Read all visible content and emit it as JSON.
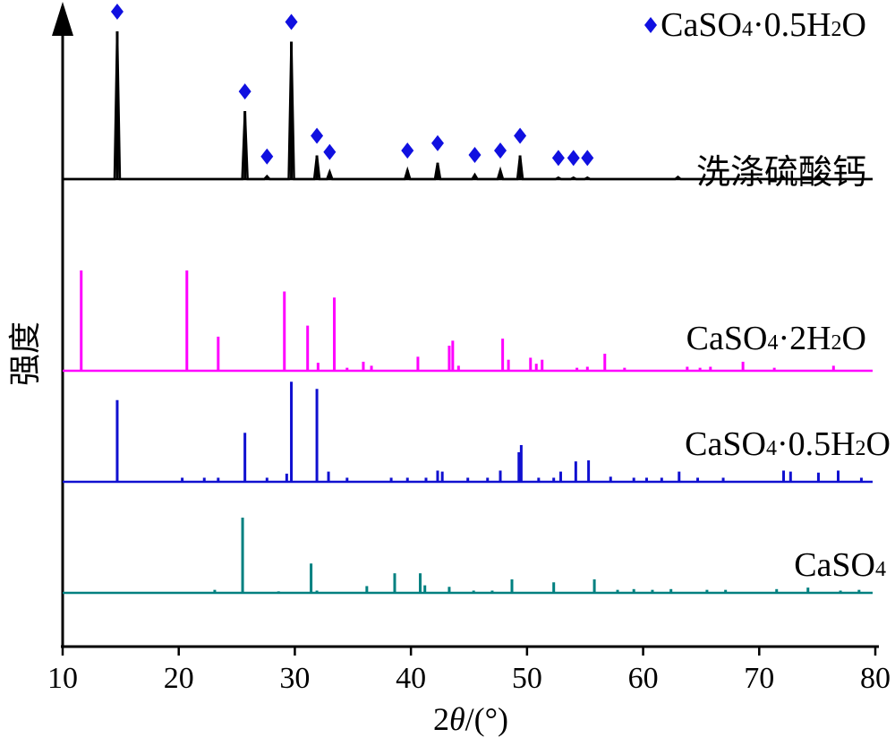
{
  "chart_data": {
    "type": "line",
    "title": "",
    "xlabel": "2θ/(°)",
    "ylabel": "强度",
    "xlim": [
      10,
      80
    ],
    "x_ticks": [
      10,
      20,
      30,
      40,
      50,
      60,
      70,
      80
    ],
    "grid": false,
    "legend": {
      "position": "top-right",
      "marker": "diamond",
      "color": "#1010e0",
      "label_parts": [
        "CaSO",
        "4",
        "·0.5H",
        "2",
        "O"
      ]
    },
    "series": [
      {
        "name": "洗涤硫酸钙",
        "label_parts": [
          "洗涤硫酸钙"
        ],
        "color": "#000000",
        "baseline": 1.0,
        "peaks": [
          {
            "x": 14.7,
            "h": 10.0,
            "marked": true
          },
          {
            "x": 25.7,
            "h": 4.6,
            "marked": true
          },
          {
            "x": 27.6,
            "h": 0.2,
            "marked": true
          },
          {
            "x": 29.7,
            "h": 9.3,
            "marked": true
          },
          {
            "x": 31.9,
            "h": 1.6,
            "marked": true
          },
          {
            "x": 33.0,
            "h": 0.5,
            "marked": true
          },
          {
            "x": 39.7,
            "h": 0.6,
            "marked": true
          },
          {
            "x": 42.3,
            "h": 1.1,
            "marked": true
          },
          {
            "x": 45.5,
            "h": 0.3,
            "marked": true
          },
          {
            "x": 47.7,
            "h": 0.6,
            "marked": true
          },
          {
            "x": 49.4,
            "h": 1.6,
            "marked": true
          },
          {
            "x": 52.7,
            "h": 0.1,
            "marked": true
          },
          {
            "x": 54.0,
            "h": 0.1,
            "marked": true
          },
          {
            "x": 55.2,
            "h": 0.1,
            "marked": true
          },
          {
            "x": 63.0,
            "h": 0.15,
            "marked": false
          },
          {
            "x": 72.0,
            "h": 0.2,
            "marked": false
          },
          {
            "x": 75.0,
            "h": 0.2,
            "marked": false
          }
        ]
      },
      {
        "name": "CaSO4·2H2O",
        "label_parts": [
          "CaSO",
          "4",
          "·2H",
          "2",
          "O"
        ],
        "color": "#ff00ff",
        "baseline": 1.0,
        "peaks": [
          {
            "x": 11.6,
            "h": 10.0
          },
          {
            "x": 20.7,
            "h": 10.0
          },
          {
            "x": 23.4,
            "h": 3.4
          },
          {
            "x": 29.1,
            "h": 7.9
          },
          {
            "x": 31.1,
            "h": 4.5
          },
          {
            "x": 32.0,
            "h": 0.8
          },
          {
            "x": 33.4,
            "h": 7.3
          },
          {
            "x": 34.5,
            "h": 0.3
          },
          {
            "x": 35.9,
            "h": 0.9
          },
          {
            "x": 36.6,
            "h": 0.5
          },
          {
            "x": 40.6,
            "h": 1.4
          },
          {
            "x": 43.3,
            "h": 2.5
          },
          {
            "x": 43.6,
            "h": 3.0
          },
          {
            "x": 44.1,
            "h": 0.5
          },
          {
            "x": 47.9,
            "h": 3.2
          },
          {
            "x": 48.4,
            "h": 1.1
          },
          {
            "x": 50.3,
            "h": 1.3
          },
          {
            "x": 50.8,
            "h": 0.7
          },
          {
            "x": 51.3,
            "h": 1.1
          },
          {
            "x": 54.3,
            "h": 0.3
          },
          {
            "x": 55.2,
            "h": 0.4
          },
          {
            "x": 56.7,
            "h": 1.7
          },
          {
            "x": 58.4,
            "h": 0.3
          },
          {
            "x": 63.8,
            "h": 0.4
          },
          {
            "x": 64.9,
            "h": 0.3
          },
          {
            "x": 65.8,
            "h": 0.4
          },
          {
            "x": 68.6,
            "h": 0.9
          },
          {
            "x": 71.3,
            "h": 0.3
          },
          {
            "x": 76.4,
            "h": 0.5
          }
        ]
      },
      {
        "name": "CaSO4·0.5H2O",
        "label_parts": [
          "CaSO",
          "4",
          "·0.5H",
          "2",
          "O"
        ],
        "color": "#1010d0",
        "baseline": 1.0,
        "peaks": [
          {
            "x": 14.7,
            "h": 8.0
          },
          {
            "x": 20.3,
            "h": 0.4
          },
          {
            "x": 22.2,
            "h": 0.4
          },
          {
            "x": 23.4,
            "h": 0.4
          },
          {
            "x": 25.7,
            "h": 4.8
          },
          {
            "x": 27.6,
            "h": 0.4
          },
          {
            "x": 29.3,
            "h": 0.8
          },
          {
            "x": 29.7,
            "h": 9.8
          },
          {
            "x": 31.9,
            "h": 9.1
          },
          {
            "x": 32.9,
            "h": 1.0
          },
          {
            "x": 34.5,
            "h": 0.4
          },
          {
            "x": 38.3,
            "h": 0.4
          },
          {
            "x": 39.7,
            "h": 0.4
          },
          {
            "x": 41.3,
            "h": 0.4
          },
          {
            "x": 42.3,
            "h": 1.1
          },
          {
            "x": 42.7,
            "h": 1.0
          },
          {
            "x": 44.9,
            "h": 0.4
          },
          {
            "x": 46.6,
            "h": 0.4
          },
          {
            "x": 47.7,
            "h": 1.1
          },
          {
            "x": 49.3,
            "h": 2.9
          },
          {
            "x": 49.5,
            "h": 3.6
          },
          {
            "x": 51.0,
            "h": 0.4
          },
          {
            "x": 52.3,
            "h": 0.4
          },
          {
            "x": 52.9,
            "h": 1.0
          },
          {
            "x": 54.2,
            "h": 2.0
          },
          {
            "x": 55.3,
            "h": 2.1
          },
          {
            "x": 57.2,
            "h": 0.5
          },
          {
            "x": 59.2,
            "h": 0.4
          },
          {
            "x": 60.3,
            "h": 0.4
          },
          {
            "x": 61.6,
            "h": 0.4
          },
          {
            "x": 63.1,
            "h": 1.0
          },
          {
            "x": 64.7,
            "h": 0.4
          },
          {
            "x": 66.9,
            "h": 0.4
          },
          {
            "x": 72.1,
            "h": 1.1
          },
          {
            "x": 72.7,
            "h": 1.0
          },
          {
            "x": 75.1,
            "h": 0.9
          },
          {
            "x": 76.8,
            "h": 1.1
          },
          {
            "x": 78.8,
            "h": 0.4
          }
        ]
      },
      {
        "name": "CaSO4",
        "label_parts": [
          "CaSO",
          "4"
        ],
        "color": "#008080",
        "baseline": 1.0,
        "peaks": [
          {
            "x": 23.1,
            "h": 0.4
          },
          {
            "x": 25.5,
            "h": 10.0
          },
          {
            "x": 28.6,
            "h": 0.2
          },
          {
            "x": 31.4,
            "h": 3.9
          },
          {
            "x": 31.9,
            "h": 0.3
          },
          {
            "x": 36.2,
            "h": 0.9
          },
          {
            "x": 38.6,
            "h": 2.6
          },
          {
            "x": 40.8,
            "h": 2.6
          },
          {
            "x": 41.2,
            "h": 1.0
          },
          {
            "x": 43.3,
            "h": 0.8
          },
          {
            "x": 45.4,
            "h": 0.3
          },
          {
            "x": 47.0,
            "h": 0.3
          },
          {
            "x": 48.7,
            "h": 1.8
          },
          {
            "x": 52.3,
            "h": 1.4
          },
          {
            "x": 55.8,
            "h": 1.8
          },
          {
            "x": 57.8,
            "h": 0.4
          },
          {
            "x": 59.2,
            "h": 0.5
          },
          {
            "x": 60.8,
            "h": 0.4
          },
          {
            "x": 62.4,
            "h": 0.5
          },
          {
            "x": 65.5,
            "h": 0.4
          },
          {
            "x": 67.1,
            "h": 0.4
          },
          {
            "x": 71.5,
            "h": 0.5
          },
          {
            "x": 74.2,
            "h": 0.7
          },
          {
            "x": 77.0,
            "h": 0.3
          },
          {
            "x": 78.6,
            "h": 0.4
          }
        ]
      }
    ]
  }
}
